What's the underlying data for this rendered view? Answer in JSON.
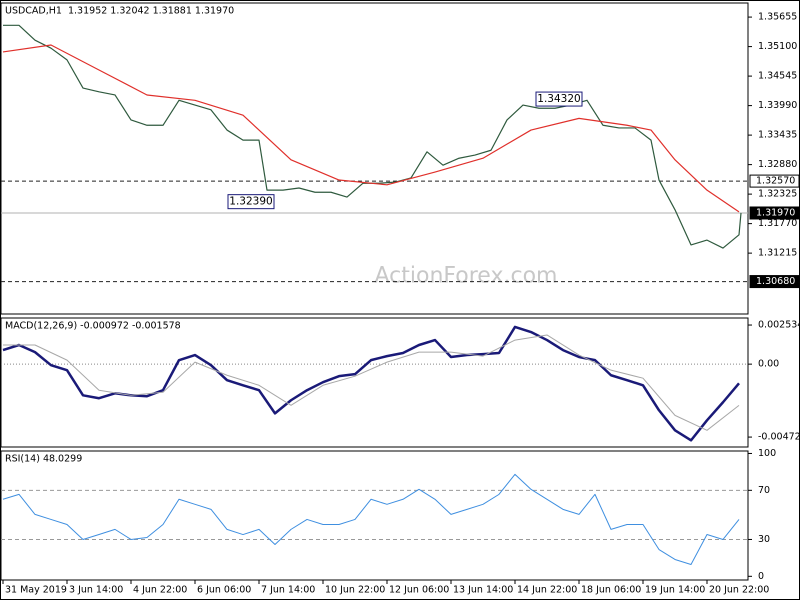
{
  "chart_data": [
    {
      "type": "line",
      "title": "USDCAD,H1  1.31952 1.32042 1.31881 1.31970",
      "xlim": [
        -1,
        370
      ],
      "ylim": [
        1.3007,
        1.3592
      ],
      "yticks": [
        1.35655,
        {
          "value": 1.351,
          "label": "1.35100"
        },
        1.34545,
        {
          "value": 1.3399,
          "label": "1.33990"
        },
        1.33435,
        {
          "value": 1.3288,
          "label": "1.32880"
        },
        1.32325,
        {
          "value": 1.3177,
          "label": "1.31770"
        },
        1.31215
      ],
      "series": [
        {
          "color": "#2f5a3e",
          "line_width": 1.2,
          "x": [
            0,
            8,
            16,
            24,
            32,
            40,
            48,
            56,
            64,
            72,
            80,
            88,
            96,
            104,
            112,
            120,
            128,
            132,
            140,
            148,
            156,
            164,
            172,
            180,
            188,
            196,
            204,
            212,
            220,
            228,
            236,
            244,
            252,
            260,
            268,
            276,
            284,
            292,
            300,
            308,
            316,
            324,
            328,
            336,
            344,
            352,
            360,
            368,
            369
          ],
          "values": [
            1.355,
            1.355,
            1.3522,
            1.3507,
            1.3485,
            1.3432,
            1.3425,
            1.3419,
            1.3372,
            1.3362,
            1.3362,
            1.3409,
            1.34,
            1.3391,
            1.3353,
            1.3334,
            1.3334,
            1.324,
            1.324,
            1.3244,
            1.3236,
            1.3236,
            1.3227,
            1.3253,
            1.3253,
            1.3255,
            1.3263,
            1.3312,
            1.3287,
            1.33,
            1.3306,
            1.3315,
            1.3372,
            1.34,
            1.3394,
            1.3394,
            1.34,
            1.3409,
            1.3362,
            1.3357,
            1.3357,
            1.3334,
            1.3259,
            1.3203,
            1.3137,
            1.3146,
            1.3131,
            1.3156,
            1.3197
          ]
        },
        {
          "color": "#e0302b",
          "line_width": 1.2,
          "x": [
            0,
            24,
            48,
            72,
            96,
            120,
            144,
            168,
            192,
            216,
            240,
            264,
            288,
            312,
            324,
            336,
            352,
            368
          ],
          "values": [
            1.35,
            1.3513,
            1.3466,
            1.3419,
            1.3409,
            1.3381,
            1.3297,
            1.3259,
            1.325,
            1.3274,
            1.33,
            1.3353,
            1.3375,
            1.3362,
            1.3353,
            1.3297,
            1.324,
            1.3199
          ]
        }
      ],
      "levels": [
        {
          "value": 1.3257,
          "label": "1.32570",
          "style": "dashed",
          "color": "#222222",
          "box": "light"
        },
        {
          "value": 1.3197,
          "label": "1.31970",
          "style": "solid",
          "color": "#b0b0b0",
          "box": "dark"
        },
        {
          "value": 1.3068,
          "label": "1.30680",
          "style": "dashed",
          "color": "#222222",
          "box": "dark"
        }
      ],
      "annotations": [
        {
          "x": 124,
          "value": 1.3239,
          "label": "1.32390"
        },
        {
          "x": 278,
          "value": 1.3432,
          "label": "1.34320"
        }
      ],
      "watermark": "ActionForex.com"
    },
    {
      "type": "line",
      "title": "MACD(12,26,9) -0.000972 -0.001578",
      "xlim": [
        -1,
        370
      ],
      "ylim": [
        -0.00537,
        0.00299
      ],
      "yticks": [
        0.002534,
        {
          "value": 0,
          "label": "0.00"
        },
        -0.004727
      ],
      "series": [
        {
          "color": "#1a1a78",
          "line_width": 2.5,
          "x": [
            0,
            8,
            16,
            24,
            32,
            40,
            48,
            56,
            64,
            72,
            80,
            88,
            96,
            104,
            112,
            120,
            128,
            136,
            144,
            152,
            160,
            168,
            176,
            184,
            192,
            200,
            208,
            216,
            224,
            232,
            240,
            248,
            256,
            264,
            272,
            280,
            288,
            296,
            304,
            312,
            320,
            328,
            336,
            344,
            352,
            360,
            368
          ],
          "values": [
            0.00091,
            0.00124,
            0.00078,
            -7e-05,
            -0.00039,
            -0.00202,
            -0.00221,
            -0.00189,
            -0.00202,
            -0.00208,
            -0.00169,
            0.00026,
            0.00059,
            -7e-05,
            -0.00104,
            -0.00137,
            -0.00169,
            -0.00319,
            -0.00234,
            -0.00169,
            -0.00117,
            -0.00078,
            -0.00065,
            0.00026,
            0.00052,
            0.00072,
            0.00124,
            0.00156,
            0.00046,
            0.00059,
            0.00065,
            0.00072,
            0.00241,
            0.00208,
            0.00156,
            0.00091,
            0.00046,
            0.00026,
            -0.00072,
            -0.00104,
            -0.00137,
            -0.00299,
            -0.00429,
            -0.00494,
            -0.00364,
            -0.00247,
            -0.00124
          ]
        },
        {
          "color": "#a8a8a8",
          "line_width": 1,
          "x": [
            0,
            16,
            32,
            48,
            64,
            80,
            96,
            112,
            128,
            144,
            160,
            176,
            192,
            208,
            224,
            240,
            256,
            272,
            288,
            304,
            320,
            336,
            352,
            368
          ],
          "values": [
            0.00124,
            0.00124,
            0.00026,
            -0.00169,
            -0.00202,
            -0.00182,
            0.00013,
            -0.00072,
            -0.00137,
            -0.00267,
            -0.00137,
            -0.00078,
            0.00013,
            0.00078,
            0.00078,
            0.00052,
            0.00156,
            0.00189,
            0.00059,
            -0.00039,
            -0.00091,
            -0.00332,
            -0.00429,
            -0.00267
          ]
        }
      ],
      "levels": [
        {
          "value": 0,
          "style": "dotted",
          "color": "#888888"
        }
      ]
    },
    {
      "type": "line",
      "title": "RSI(14) 48.0299",
      "xlim": [
        -1,
        370
      ],
      "ylim": [
        -3,
        102
      ],
      "yticks": [
        100,
        70,
        30,
        0
      ],
      "xticks": [
        {
          "value": 0,
          "label": "31 May 2019"
        },
        {
          "value": 32,
          "label": "3 Jun 14:00"
        },
        {
          "value": 64,
          "label": "4 Jun 22:00"
        },
        {
          "value": 96,
          "label": "6 Jun 06:00"
        },
        {
          "value": 128,
          "label": "7 Jun 14:00"
        },
        {
          "value": 160,
          "label": "10 Jun 22:00"
        },
        {
          "value": 192,
          "label": "12 Jun 06:00"
        },
        {
          "value": 224,
          "label": "13 Jun 14:00"
        },
        {
          "value": 256,
          "label": "14 Jun 22:00"
        },
        {
          "value": 288,
          "label": "18 Jun 06:00"
        },
        {
          "value": 320,
          "label": "19 Jun 14:00"
        },
        {
          "value": 352,
          "label": "20 Jun 22:00"
        }
      ],
      "series": [
        {
          "color": "#3f8fe0",
          "line_width": 1,
          "x": [
            0,
            8,
            16,
            24,
            32,
            40,
            48,
            56,
            64,
            72,
            80,
            88,
            96,
            104,
            112,
            120,
            128,
            136,
            144,
            152,
            160,
            168,
            176,
            184,
            192,
            200,
            208,
            216,
            224,
            232,
            240,
            248,
            256,
            264,
            272,
            280,
            288,
            296,
            304,
            312,
            320,
            328,
            336,
            344,
            352,
            360,
            368
          ],
          "values": [
            62.7,
            66.7,
            50.4,
            46.3,
            42.2,
            30,
            34,
            38.2,
            30,
            31.6,
            42.2,
            62.7,
            58.6,
            54.5,
            38.2,
            34,
            38.2,
            25.9,
            38.2,
            46.3,
            42.2,
            42.2,
            46.3,
            62.7,
            58.6,
            62.7,
            70.8,
            62.7,
            50.4,
            54.5,
            58.6,
            66.7,
            83,
            70.8,
            62.7,
            54.5,
            50.4,
            66.7,
            38.2,
            42.2,
            42.2,
            21.8,
            13.7,
            9.6,
            34,
            30,
            46.3
          ]
        }
      ],
      "levels": [
        {
          "value": 70,
          "style": "dashed",
          "color": "#999999"
        },
        {
          "value": 30,
          "style": "dashed",
          "color": "#999999"
        }
      ]
    }
  ]
}
